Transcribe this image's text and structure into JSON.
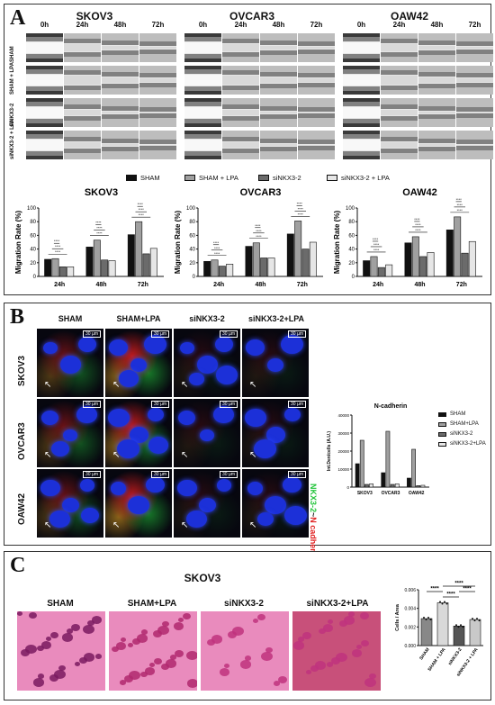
{
  "panelA": {
    "letter": "A",
    "cell_lines": [
      "SKOV3",
      "OVCAR3",
      "OAW42"
    ],
    "timepoints": [
      "0h",
      "24h",
      "48h",
      "72h"
    ],
    "row_labels": [
      "SHAM",
      "SHAM + LPA",
      "siNKX3-2",
      "siNKX3-2 + LPA"
    ],
    "legend": [
      "SHAM",
      "SHAM + LPA",
      "siNKX3-2",
      "siNKX3-2 + LPA"
    ],
    "colors": [
      "#111111",
      "#a0a0a0",
      "#6b6b6b",
      "#e6e6e6"
    ]
  },
  "chart_data": [
    {
      "type": "bar",
      "title": "SKOV3",
      "ylabel": "Migration Rate (%)",
      "ylim": [
        0,
        100
      ],
      "yticks": [
        "0",
        "20",
        "40",
        "60",
        "80",
        "100"
      ],
      "categories": [
        "24h",
        "48h",
        "72h"
      ],
      "series": [
        {
          "name": "SHAM",
          "values": [
            25,
            43,
            61
          ]
        },
        {
          "name": "SHAM + LPA",
          "values": [
            26,
            53,
            80
          ]
        },
        {
          "name": "siNKX3-2",
          "values": [
            14,
            24,
            33
          ]
        },
        {
          "name": "siNKX3-2 + LPA",
          "values": [
            14,
            23,
            41
          ]
        }
      ],
      "significance": "****"
    },
    {
      "type": "bar",
      "title": "OVCAR3",
      "ylabel": "Migration Rate (%)",
      "ylim": [
        0,
        100
      ],
      "yticks": [
        "0",
        "20",
        "40",
        "60",
        "80",
        "100"
      ],
      "categories": [
        "24h",
        "48h",
        "72h"
      ],
      "series": [
        {
          "name": "SHAM",
          "values": [
            22,
            44,
            62
          ]
        },
        {
          "name": "SHAM + LPA",
          "values": [
            24,
            49,
            81
          ]
        },
        {
          "name": "siNKX3-2",
          "values": [
            15,
            27,
            40
          ]
        },
        {
          "name": "siNKX3-2 + LPA",
          "values": [
            18,
            27,
            50
          ]
        }
      ],
      "significance": "****"
    },
    {
      "type": "bar",
      "title": "OAW42",
      "ylabel": "Migration Rate (%)",
      "ylim": [
        0,
        100
      ],
      "yticks": [
        "0",
        "20",
        "40",
        "60",
        "80",
        "100"
      ],
      "categories": [
        "24h",
        "48h",
        "72h"
      ],
      "series": [
        {
          "name": "SHAM",
          "values": [
            23,
            49,
            68
          ]
        },
        {
          "name": "SHAM + LPA",
          "values": [
            29,
            58,
            87
          ]
        },
        {
          "name": "siNKX3-2",
          "values": [
            13,
            29,
            34
          ]
        },
        {
          "name": "siNKX3-2 + LPA",
          "values": [
            17,
            35,
            51
          ]
        }
      ],
      "significance": "****"
    },
    {
      "type": "bar",
      "title": "N-cadherin",
      "ylabel": "Int.Den/cells (A.U.)",
      "ylim": [
        0,
        40000
      ],
      "yticks": [
        "0",
        "10000",
        "20000",
        "30000",
        "40000"
      ],
      "categories": [
        "SKOV3",
        "OVCAR3",
        "OAW42"
      ],
      "series": [
        {
          "name": "SHAM",
          "values": [
            13000,
            8000,
            5000
          ]
        },
        {
          "name": "SHAM+LPA",
          "values": [
            26000,
            31000,
            21000
          ]
        },
        {
          "name": "siNKX3-2",
          "values": [
            1500,
            1500,
            800
          ]
        },
        {
          "name": "siNKX3-2+LPA",
          "values": [
            1800,
            1800,
            1000
          ]
        }
      ]
    },
    {
      "type": "bar",
      "title": "",
      "ylabel": "Cells / Area",
      "ylim": [
        0,
        0.006
      ],
      "yticks": [
        "0.000",
        "0.002",
        "0.004",
        "0.006"
      ],
      "categories": [
        "SHAM",
        "SHAM + LPA",
        "siNKX3-2",
        "siNKX3-2 + LPA"
      ],
      "values": [
        0.0029,
        0.0046,
        0.0021,
        0.0028
      ],
      "significance": "****"
    }
  ],
  "panelB": {
    "letter": "B",
    "columns": [
      "SHAM",
      "SHAM+LPA",
      "siNKX3-2",
      "siNKX3-2+LPA"
    ],
    "rows": [
      "SKOV3",
      "OVCAR3",
      "OAW42"
    ],
    "scale_bar": "30 µm",
    "stain_green": "NKX3-2",
    "stain_sep": "~",
    "stain_red": "N cadherin",
    "legend": [
      "SHAM",
      "SHAM+LPA",
      "siNKX3-2",
      "siNKX3-2+LPA"
    ],
    "colors": [
      "#111111",
      "#a0a0a0",
      "#6b6b6b",
      "#e6e6e6"
    ],
    "green": "#22c43a",
    "red": "#e02020"
  },
  "panelC": {
    "letter": "C",
    "title": "SKOV3",
    "columns": [
      "SHAM",
      "SHAM+LPA",
      "siNKX3-2",
      "siNKX3-2+LPA"
    ]
  }
}
